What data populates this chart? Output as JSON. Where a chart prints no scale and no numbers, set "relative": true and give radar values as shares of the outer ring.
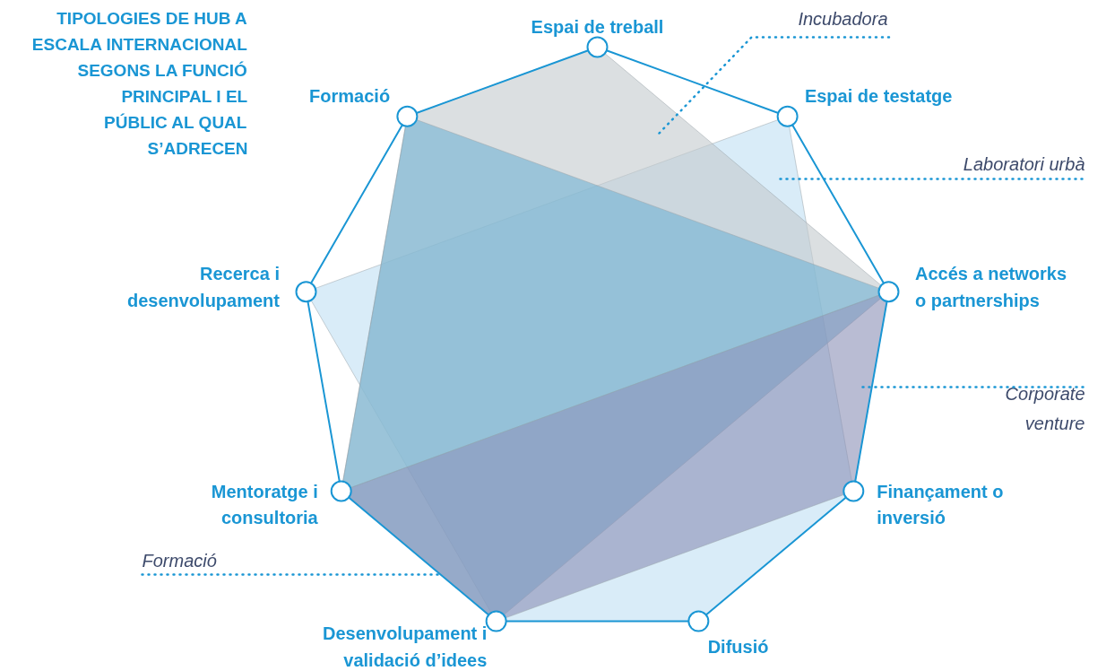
{
  "chart_data": {
    "type": "radar",
    "relative": true,
    "title": "TIPOLOGIES DE HUB A ESCALA INTERNACIONAL SEGONS LA FUNCIÓ PRINCIPAL I EL PÚBLIC AL QUAL S’ADRECEN",
    "categories": [
      "Espai de treball",
      "Espai de testatge",
      "Accés a networks o partnerships",
      "Finançament o inversió",
      "Difusió",
      "Desenvolupament i validació d’idees",
      "Mentoratge i consultoria",
      "Recerca i desenvolupament",
      "Formació"
    ],
    "series": [
      {
        "name": "Laboratori urbà",
        "color": "#bfe0f3",
        "values": [
          null,
          1,
          null,
          1,
          1,
          1,
          null,
          1,
          null
        ]
      },
      {
        "name": "Incubadora",
        "color": "#c3c9cd",
        "values": [
          1,
          null,
          1,
          null,
          null,
          null,
          1,
          null,
          1
        ]
      },
      {
        "name": "Formació",
        "color": "#6fb3d4",
        "values": [
          null,
          null,
          1,
          null,
          null,
          1,
          1,
          null,
          1
        ]
      },
      {
        "name": "Corporate venture",
        "color": "#8a8fb6",
        "values": [
          null,
          null,
          1,
          1,
          null,
          1,
          1,
          null,
          null
        ]
      }
    ]
  }
}
